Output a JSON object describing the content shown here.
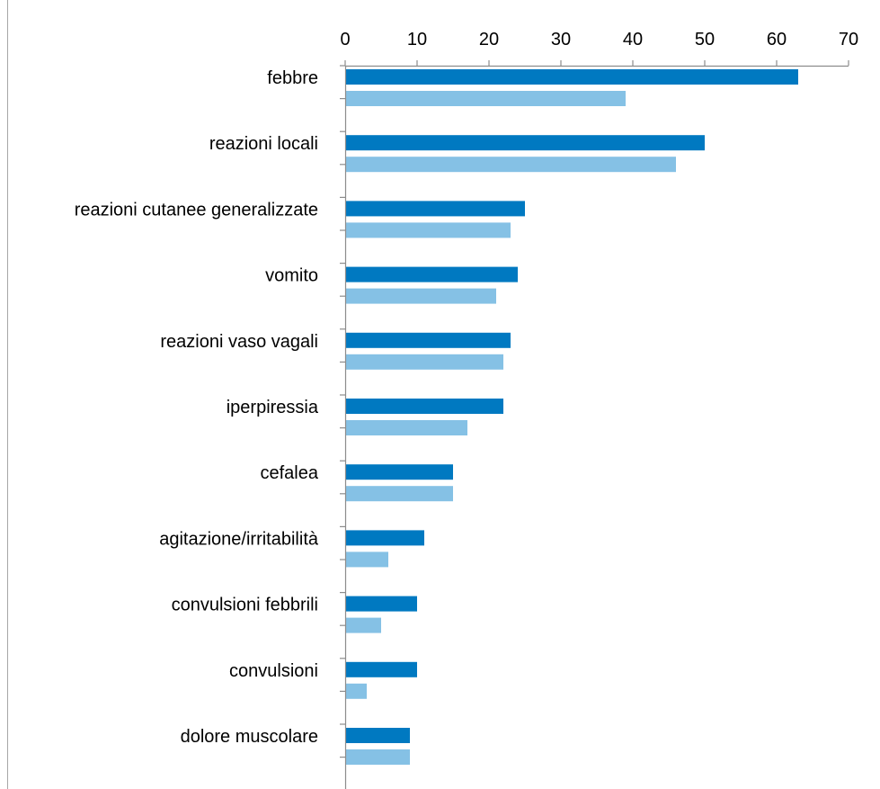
{
  "chart_data": {
    "type": "bar",
    "orientation": "horizontal",
    "x_axis_position": "top",
    "categories": [
      "febbre",
      "reazioni locali",
      "reazioni cutanee generalizzate",
      "vomito",
      "reazioni vaso vagali",
      "iperpiressia",
      "cefalea",
      "agitazione/irritabilità",
      "convulsioni febbrili",
      "convulsioni",
      "dolore muscolare"
    ],
    "series": [
      {
        "color": "#0079c1",
        "values": [
          63,
          50,
          25,
          24,
          23,
          22,
          15,
          11,
          10,
          10,
          9
        ]
      },
      {
        "color": "#85c1e5",
        "values": [
          39,
          46,
          23,
          21,
          22,
          17,
          15,
          6,
          5,
          3,
          9
        ]
      }
    ],
    "xlim": [
      0,
      70
    ],
    "xticks": [
      0,
      10,
      20,
      30,
      40,
      50,
      60,
      70
    ],
    "title": "",
    "xlabel": "",
    "ylabel": "",
    "grid": false,
    "legend": "none"
  }
}
